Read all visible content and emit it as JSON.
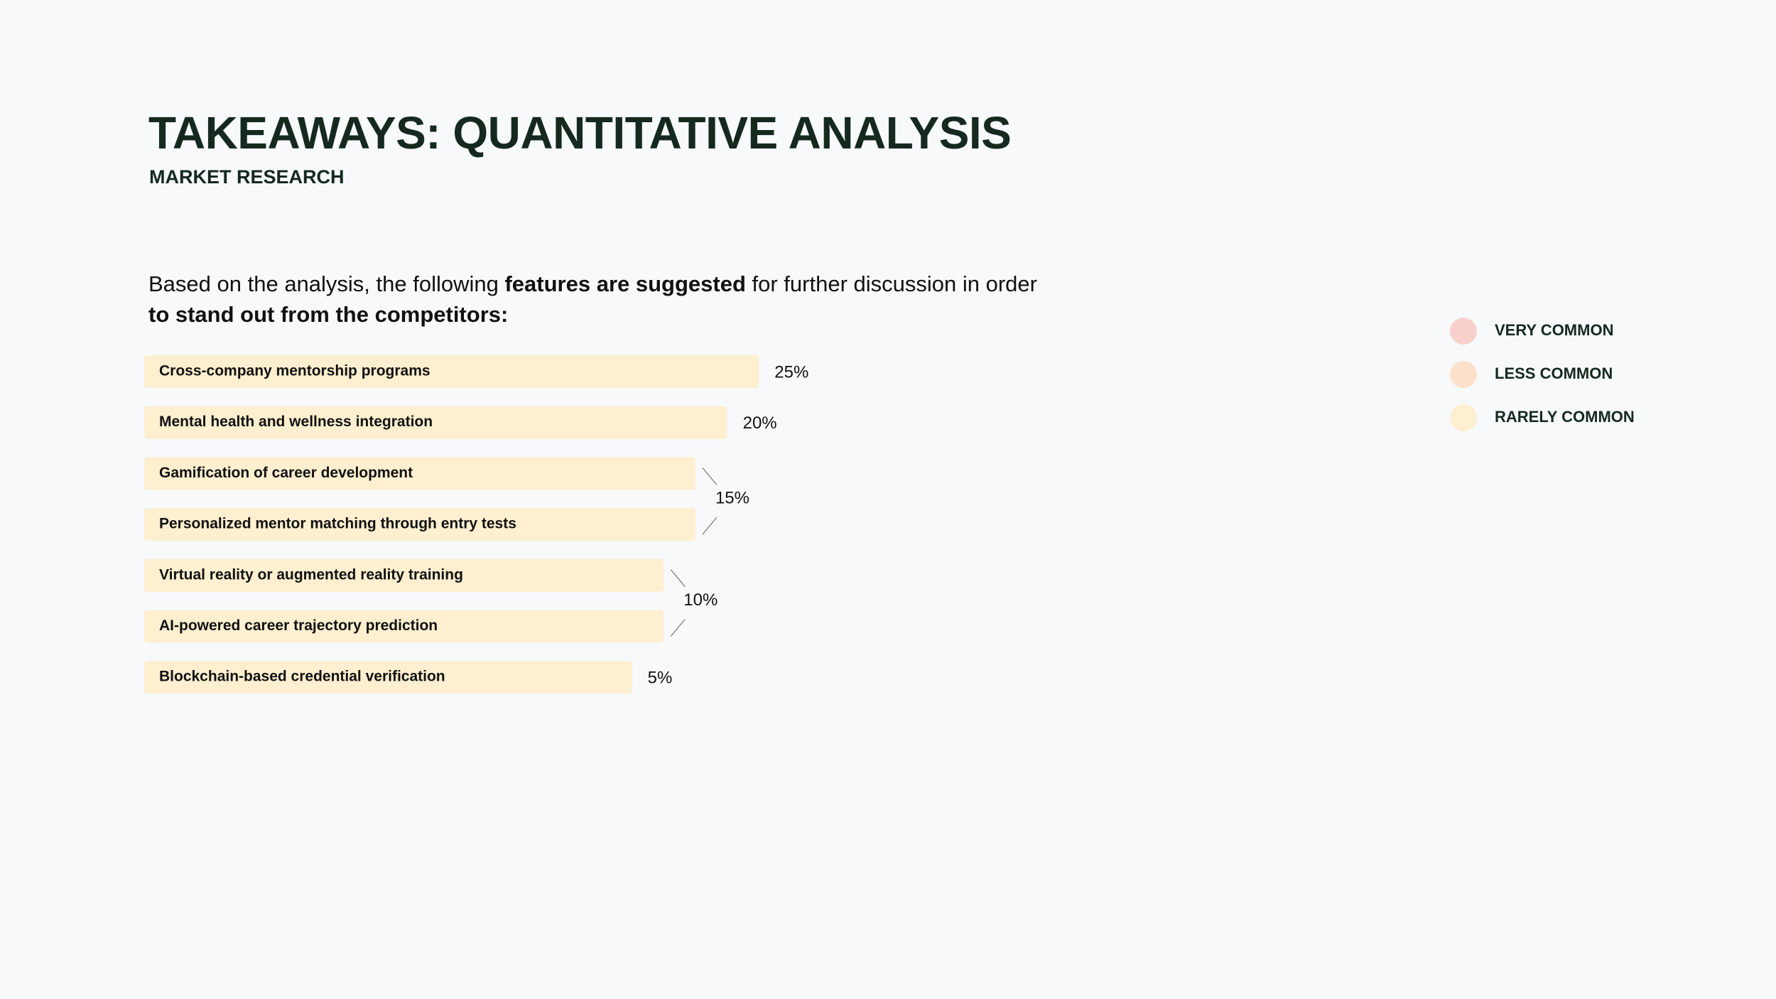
{
  "header": {
    "title": "TAKEAWAYS: QUANTITATIVE ANALYSIS",
    "subtitle": "MARKET RESEARCH"
  },
  "intro": {
    "parts": [
      "Based on the analysis, the following ",
      "features are suggested",
      " for further discussion in order",
      "to stand out from the competitors:"
    ]
  },
  "chart_data": {
    "type": "bar",
    "orientation": "horizontal",
    "color": "#fdefcf",
    "categories": [
      "Cross-company mentorship programs",
      "Mental health and wellness integration",
      "Gamification of career development",
      "Personalized mentor matching through entry tests",
      "Virtual reality or augmented reality training",
      "AI-powered career trajectory prediction",
      "Blockchain-based credential verification"
    ],
    "values": [
      25,
      20,
      15,
      15,
      10,
      10,
      5
    ],
    "value_labels": [
      "25%",
      "20%",
      "15%",
      null,
      "10%",
      null,
      "5%"
    ],
    "legend": [
      {
        "label": "VERY COMMON",
        "color": "#f7d0cc"
      },
      {
        "label": "LESS COMMON",
        "color": "#fbe0cb"
      },
      {
        "label": "RARELY COMMON",
        "color": "#fdefcf"
      }
    ]
  }
}
